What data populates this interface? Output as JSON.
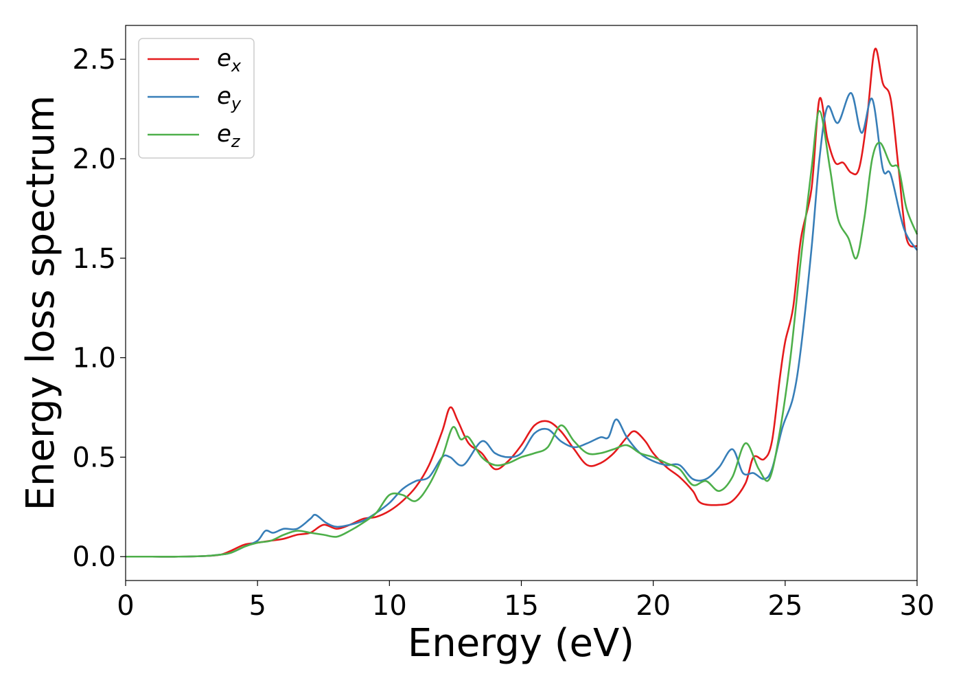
{
  "chart_data": {
    "type": "line",
    "title": "",
    "xlabel": "Energy (eV)",
    "ylabel": "Energy loss spectrum",
    "xlim": [
      0,
      30
    ],
    "ylim": [
      -0.12,
      2.67
    ],
    "xticks": [
      0,
      5,
      10,
      15,
      20,
      25,
      30
    ],
    "xtick_labels": [
      "0",
      "5",
      "10",
      "15",
      "20",
      "25",
      "30"
    ],
    "yticks": [
      0.0,
      0.5,
      1.0,
      1.5,
      2.0,
      2.5
    ],
    "ytick_labels": [
      "0.0",
      "0.5",
      "1.0",
      "1.5",
      "2.0",
      "2.5"
    ],
    "grid": false,
    "legend_position": "top-left",
    "series": [
      {
        "name": "e",
        "subscript": "x",
        "color": "#e41a1c",
        "points": [
          [
            0,
            0
          ],
          [
            1,
            0
          ],
          [
            2,
            0
          ],
          [
            3,
            0.003
          ],
          [
            3.6,
            0.01
          ],
          [
            4,
            0.03
          ],
          [
            4.5,
            0.06
          ],
          [
            5,
            0.07
          ],
          [
            5.5,
            0.08
          ],
          [
            6,
            0.09
          ],
          [
            6.5,
            0.11
          ],
          [
            7,
            0.12
          ],
          [
            7.5,
            0.16
          ],
          [
            8,
            0.14
          ],
          [
            8.5,
            0.16
          ],
          [
            9,
            0.19
          ],
          [
            9.5,
            0.2
          ],
          [
            10,
            0.23
          ],
          [
            10.5,
            0.28
          ],
          [
            11,
            0.35
          ],
          [
            11.5,
            0.46
          ],
          [
            12,
            0.63
          ],
          [
            12.3,
            0.75
          ],
          [
            12.6,
            0.68
          ],
          [
            13,
            0.57
          ],
          [
            13.5,
            0.52
          ],
          [
            14,
            0.44
          ],
          [
            14.5,
            0.48
          ],
          [
            15,
            0.56
          ],
          [
            15.5,
            0.66
          ],
          [
            16,
            0.68
          ],
          [
            16.5,
            0.63
          ],
          [
            17,
            0.54
          ],
          [
            17.5,
            0.46
          ],
          [
            18,
            0.47
          ],
          [
            18.5,
            0.52
          ],
          [
            19,
            0.6
          ],
          [
            19.3,
            0.63
          ],
          [
            19.7,
            0.58
          ],
          [
            20,
            0.52
          ],
          [
            20.5,
            0.45
          ],
          [
            21,
            0.4
          ],
          [
            21.5,
            0.33
          ],
          [
            21.8,
            0.27
          ],
          [
            22.5,
            0.26
          ],
          [
            23,
            0.28
          ],
          [
            23.5,
            0.37
          ],
          [
            23.8,
            0.5
          ],
          [
            24.2,
            0.49
          ],
          [
            24.5,
            0.58
          ],
          [
            24.8,
            0.9
          ],
          [
            25,
            1.08
          ],
          [
            25.3,
            1.25
          ],
          [
            25.6,
            1.6
          ],
          [
            26,
            1.85
          ],
          [
            26.3,
            2.3
          ],
          [
            26.6,
            2.1
          ],
          [
            26.9,
            1.98
          ],
          [
            27.2,
            1.98
          ],
          [
            27.5,
            1.93
          ],
          [
            27.8,
            1.95
          ],
          [
            28.1,
            2.2
          ],
          [
            28.4,
            2.55
          ],
          [
            28.7,
            2.38
          ],
          [
            29,
            2.3
          ],
          [
            29.3,
            1.95
          ],
          [
            29.6,
            1.6
          ],
          [
            30,
            1.56
          ]
        ]
      },
      {
        "name": "e",
        "subscript": "y",
        "color": "#377eb8",
        "points": [
          [
            0,
            0
          ],
          [
            1,
            0
          ],
          [
            2,
            0
          ],
          [
            3,
            0.003
          ],
          [
            3.6,
            0.01
          ],
          [
            4,
            0.02
          ],
          [
            4.5,
            0.05
          ],
          [
            5,
            0.08
          ],
          [
            5.3,
            0.13
          ],
          [
            5.6,
            0.12
          ],
          [
            6,
            0.14
          ],
          [
            6.5,
            0.14
          ],
          [
            7,
            0.19
          ],
          [
            7.2,
            0.21
          ],
          [
            7.6,
            0.17
          ],
          [
            8,
            0.15
          ],
          [
            8.5,
            0.16
          ],
          [
            9,
            0.18
          ],
          [
            9.5,
            0.22
          ],
          [
            10,
            0.27
          ],
          [
            10.5,
            0.34
          ],
          [
            11,
            0.38
          ],
          [
            11.5,
            0.4
          ],
          [
            12,
            0.5
          ],
          [
            12.3,
            0.5
          ],
          [
            12.8,
            0.46
          ],
          [
            13.5,
            0.58
          ],
          [
            14,
            0.52
          ],
          [
            14.5,
            0.5
          ],
          [
            15,
            0.52
          ],
          [
            15.5,
            0.62
          ],
          [
            16,
            0.64
          ],
          [
            16.5,
            0.58
          ],
          [
            17,
            0.55
          ],
          [
            17.5,
            0.57
          ],
          [
            18,
            0.6
          ],
          [
            18.3,
            0.6
          ],
          [
            18.6,
            0.69
          ],
          [
            19,
            0.6
          ],
          [
            19.5,
            0.52
          ],
          [
            20,
            0.48
          ],
          [
            20.5,
            0.46
          ],
          [
            21,
            0.46
          ],
          [
            21.5,
            0.39
          ],
          [
            22,
            0.39
          ],
          [
            22.5,
            0.45
          ],
          [
            23,
            0.54
          ],
          [
            23.4,
            0.42
          ],
          [
            23.8,
            0.42
          ],
          [
            24.2,
            0.39
          ],
          [
            24.5,
            0.44
          ],
          [
            24.9,
            0.65
          ],
          [
            25.3,
            0.8
          ],
          [
            25.6,
            1.05
          ],
          [
            26,
            1.55
          ],
          [
            26.3,
            2.0
          ],
          [
            26.6,
            2.26
          ],
          [
            27,
            2.18
          ],
          [
            27.5,
            2.33
          ],
          [
            27.9,
            2.13
          ],
          [
            28.3,
            2.3
          ],
          [
            28.7,
            1.95
          ],
          [
            29,
            1.92
          ],
          [
            29.5,
            1.65
          ],
          [
            30,
            1.54
          ]
        ]
      },
      {
        "name": "e",
        "subscript": "z",
        "color": "#4daf4a",
        "points": [
          [
            0,
            0
          ],
          [
            1,
            0
          ],
          [
            2,
            0
          ],
          [
            3,
            0.003
          ],
          [
            3.6,
            0.01
          ],
          [
            4,
            0.02
          ],
          [
            4.5,
            0.05
          ],
          [
            5,
            0.07
          ],
          [
            5.5,
            0.08
          ],
          [
            6,
            0.11
          ],
          [
            6.5,
            0.13
          ],
          [
            7,
            0.12
          ],
          [
            7.5,
            0.11
          ],
          [
            8,
            0.1
          ],
          [
            8.5,
            0.13
          ],
          [
            9,
            0.17
          ],
          [
            9.5,
            0.22
          ],
          [
            10,
            0.31
          ],
          [
            10.5,
            0.31
          ],
          [
            11,
            0.28
          ],
          [
            11.5,
            0.36
          ],
          [
            12,
            0.5
          ],
          [
            12.4,
            0.65
          ],
          [
            12.7,
            0.59
          ],
          [
            13,
            0.6
          ],
          [
            13.5,
            0.5
          ],
          [
            14,
            0.46
          ],
          [
            14.5,
            0.47
          ],
          [
            15,
            0.5
          ],
          [
            15.5,
            0.52
          ],
          [
            16,
            0.55
          ],
          [
            16.5,
            0.66
          ],
          [
            17,
            0.58
          ],
          [
            17.5,
            0.52
          ],
          [
            18,
            0.52
          ],
          [
            18.5,
            0.54
          ],
          [
            19,
            0.56
          ],
          [
            19.5,
            0.52
          ],
          [
            20,
            0.5
          ],
          [
            20.5,
            0.47
          ],
          [
            21,
            0.44
          ],
          [
            21.5,
            0.36
          ],
          [
            22,
            0.38
          ],
          [
            22.5,
            0.33
          ],
          [
            23,
            0.4
          ],
          [
            23.5,
            0.57
          ],
          [
            24,
            0.44
          ],
          [
            24.4,
            0.39
          ],
          [
            24.8,
            0.63
          ],
          [
            25.2,
            1.0
          ],
          [
            25.6,
            1.5
          ],
          [
            26,
            1.95
          ],
          [
            26.3,
            2.24
          ],
          [
            26.7,
            1.95
          ],
          [
            27,
            1.7
          ],
          [
            27.4,
            1.6
          ],
          [
            27.7,
            1.5
          ],
          [
            28,
            1.7
          ],
          [
            28.3,
            2.0
          ],
          [
            28.6,
            2.08
          ],
          [
            29,
            1.97
          ],
          [
            29.3,
            1.95
          ],
          [
            29.6,
            1.75
          ],
          [
            30,
            1.62
          ]
        ]
      }
    ]
  }
}
